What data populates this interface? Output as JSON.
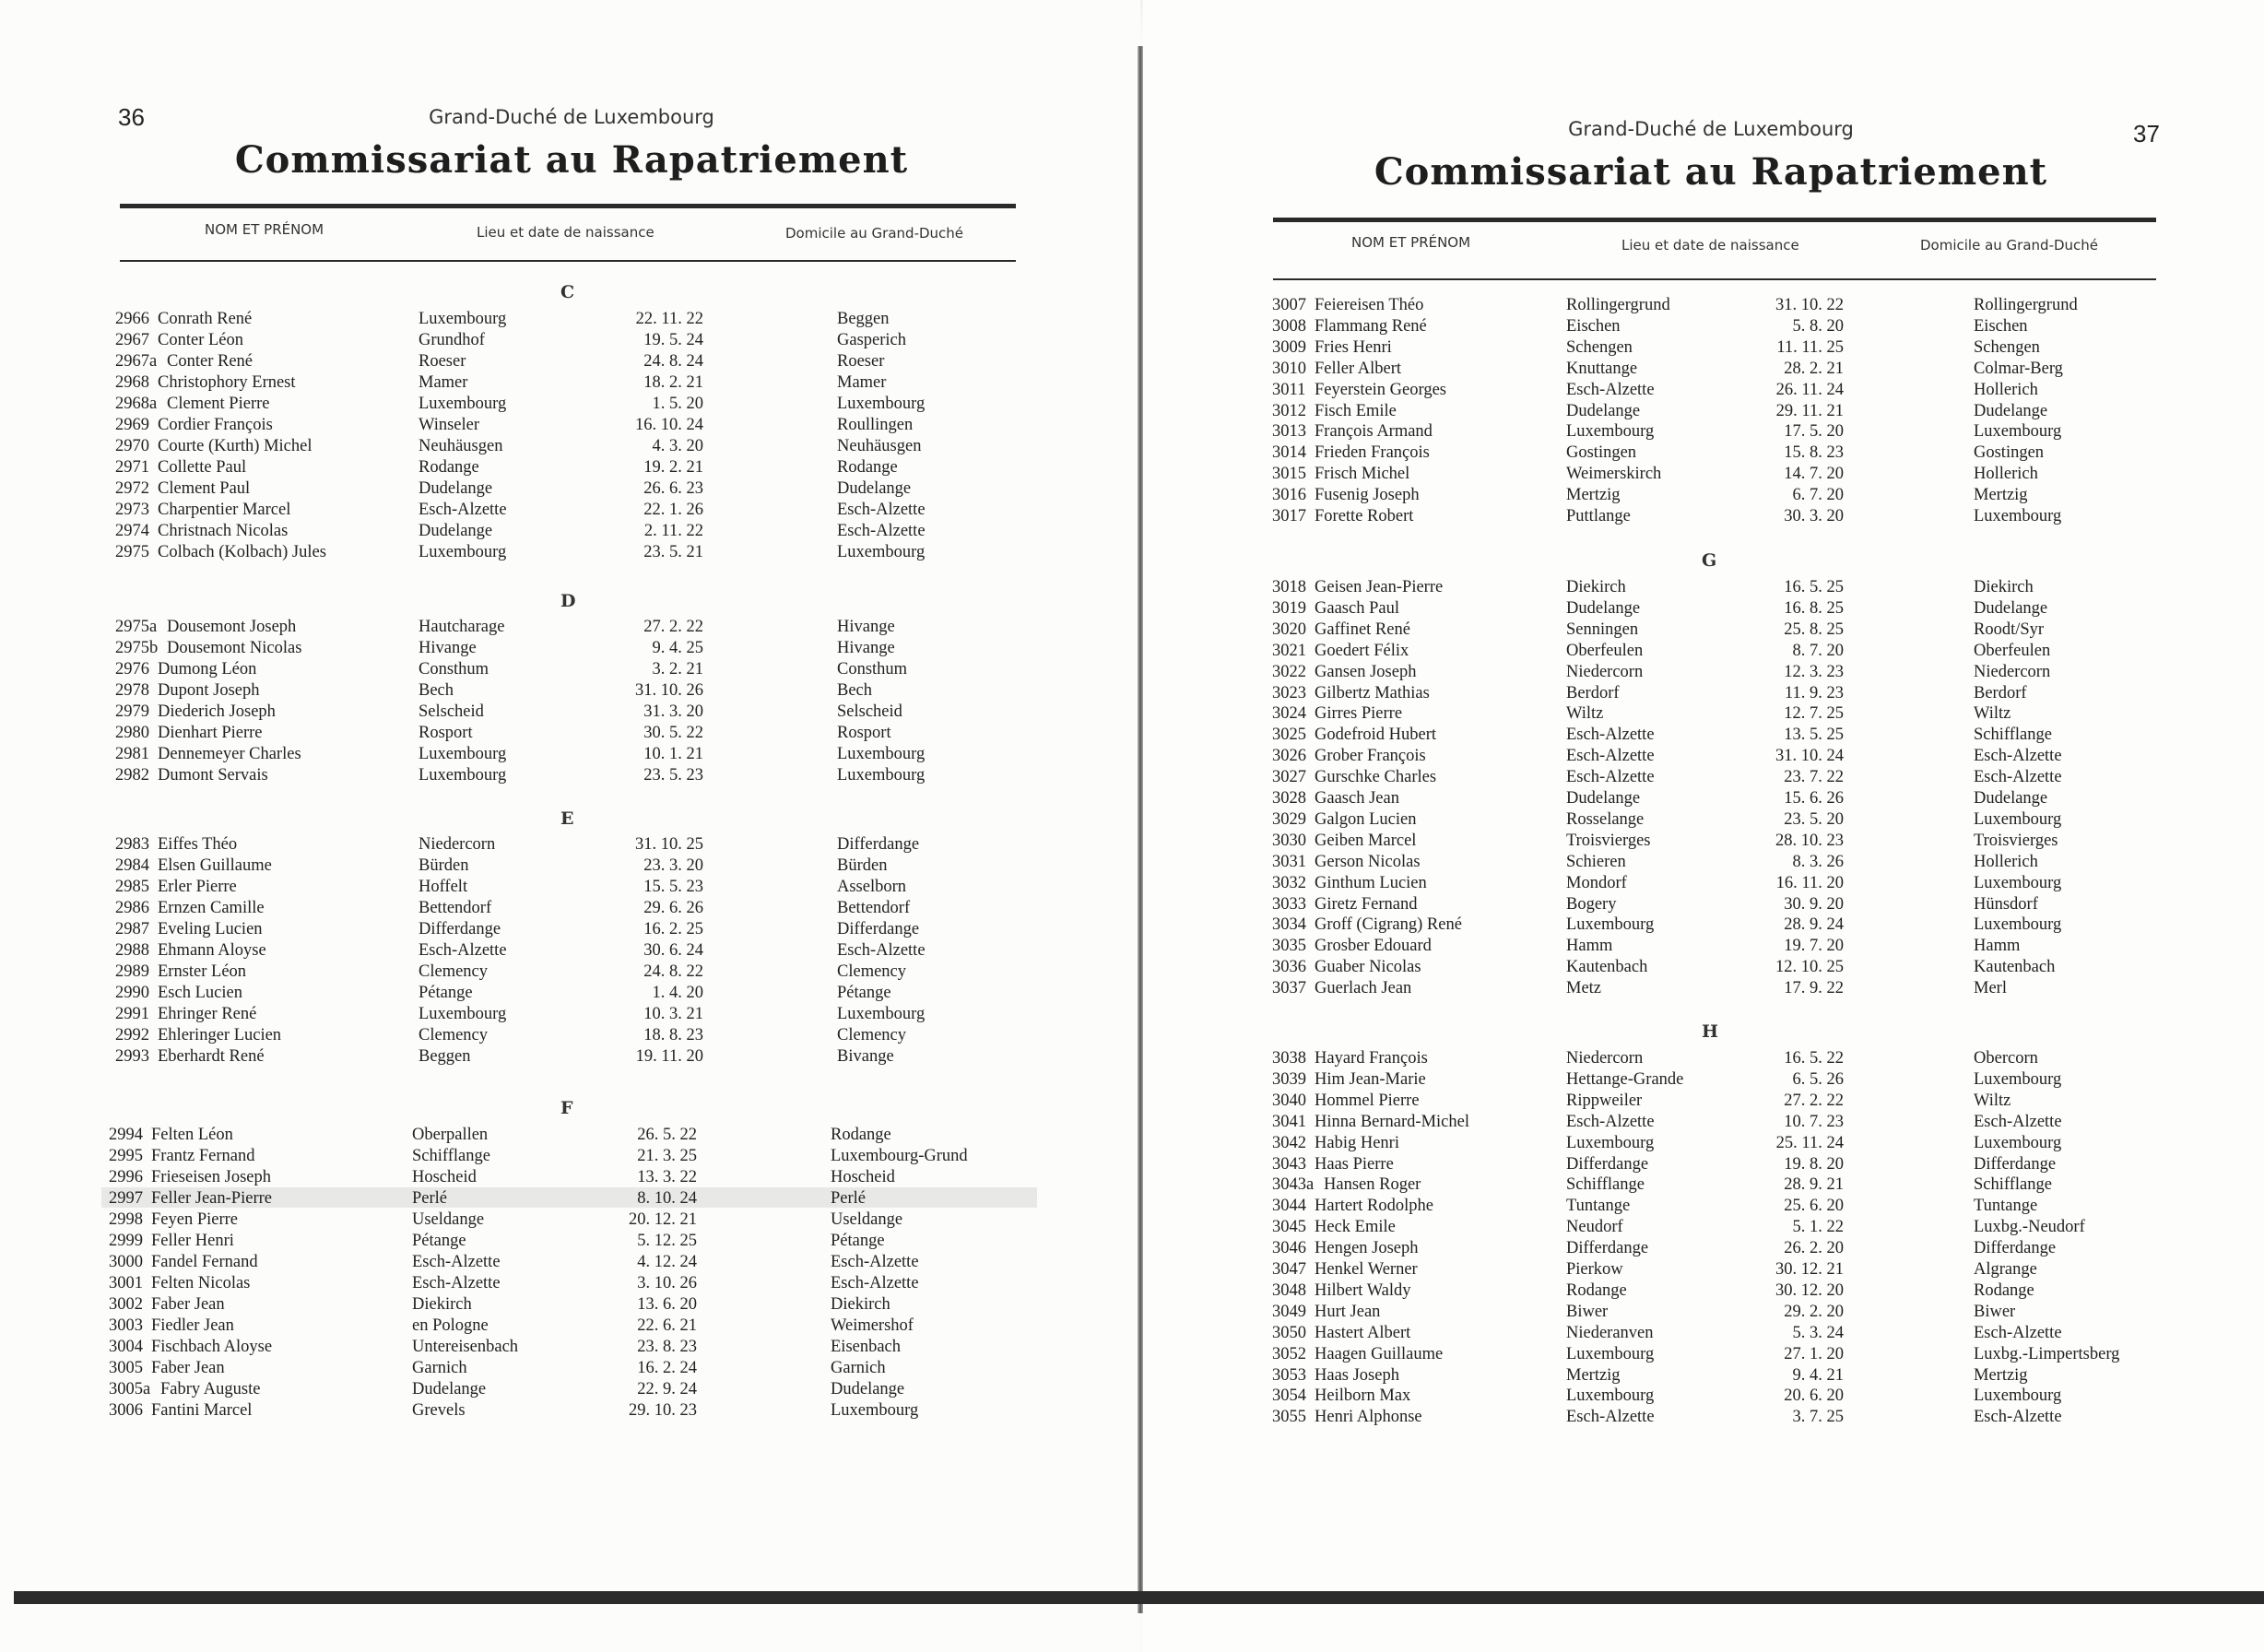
{
  "pages": [
    {
      "page_number": "36",
      "subtitle": "Grand-Duché de Luxembourg",
      "title": "Commissariat au Rapatriement",
      "headers": {
        "name": "NOM ET PRÉNOM",
        "birth": "Lieu et date de naissance",
        "domicile": "Domicile au Grand-Duché"
      },
      "sections": [
        {
          "letter": "C",
          "rows": [
            [
              "2966",
              "Conrath René",
              "Luxembourg",
              "22. 11. 22",
              "Beggen"
            ],
            [
              "2967",
              "Conter Léon",
              "Grundhof",
              "19.  5. 24",
              "Gasperich"
            ],
            [
              "2967a",
              "Conter René",
              "Roeser",
              "24.  8. 24",
              "Roeser"
            ],
            [
              "2968",
              "Christophory Ernest",
              "Mamer",
              "18.  2. 21",
              "Mamer"
            ],
            [
              "2968a",
              "Clement Pierre",
              "Luxembourg",
              "1.  5. 20",
              "Luxembourg"
            ],
            [
              "2969",
              "Cordier François",
              "Winseler",
              "16. 10. 24",
              "Roullingen"
            ],
            [
              "2970",
              "Courte (Kurth) Michel",
              "Neuhäusgen",
              "4.  3. 20",
              "Neuhäusgen"
            ],
            [
              "2971",
              "Collette Paul",
              "Rodange",
              "19.  2. 21",
              "Rodange"
            ],
            [
              "2972",
              "Clement Paul",
              "Dudelange",
              "26.  6. 23",
              "Dudelange"
            ],
            [
              "2973",
              "Charpentier Marcel",
              "Esch-Alzette",
              "22.  1. 26",
              "Esch-Alzette"
            ],
            [
              "2974",
              "Christnach Nicolas",
              "Dudelange",
              "2. 11. 22",
              "Esch-Alzette"
            ],
            [
              "2975",
              "Colbach (Kolbach) Jules",
              "Luxembourg",
              "23.  5. 21",
              "Luxembourg"
            ]
          ]
        },
        {
          "letter": "D",
          "rows": [
            [
              "2975a",
              "Dousemont Joseph",
              "Hautcharage",
              "27.  2. 22",
              "Hivange"
            ],
            [
              "2975b",
              "Dousemont Nicolas",
              "Hivange",
              "9.  4. 25",
              "Hivange"
            ],
            [
              "2976",
              "Dumong Léon",
              "Consthum",
              "3.  2. 21",
              "Consthum"
            ],
            [
              "2978",
              "Dupont Joseph",
              "Bech",
              "31. 10. 26",
              "Bech"
            ],
            [
              "2979",
              "Diederich Joseph",
              "Selscheid",
              "31.  3. 20",
              "Selscheid"
            ],
            [
              "2980",
              "Dienhart Pierre",
              "Rosport",
              "30.  5. 22",
              "Rosport"
            ],
            [
              "2981",
              "Dennemeyer Charles",
              "Luxembourg",
              "10.  1. 21",
              "Luxembourg"
            ],
            [
              "2982",
              "Dumont Servais",
              "Luxembourg",
              "23.  5. 23",
              "Luxembourg"
            ]
          ]
        },
        {
          "letter": "E",
          "rows": [
            [
              "2983",
              "Eiffes Théo",
              "Niedercorn",
              "31. 10. 25",
              "Differdange"
            ],
            [
              "2984",
              "Elsen Guillaume",
              "Bürden",
              "23.  3. 20",
              "Bürden"
            ],
            [
              "2985",
              "Erler Pierre",
              "Hoffelt",
              "15.  5. 23",
              "Asselborn"
            ],
            [
              "2986",
              "Ernzen Camille",
              "Bettendorf",
              "29.  6. 26",
              "Bettendorf"
            ],
            [
              "2987",
              "Eveling Lucien",
              "Differdange",
              "16.  2. 25",
              "Differdange"
            ],
            [
              "2988",
              "Ehmann Aloyse",
              "Esch-Alzette",
              "30.  6. 24",
              "Esch-Alzette"
            ],
            [
              "2989",
              "Ernster Léon",
              "Clemency",
              "24.  8. 22",
              "Clemency"
            ],
            [
              "2990",
              "Esch Lucien",
              "Pétange",
              "1.  4. 20",
              "Pétange"
            ],
            [
              "2991",
              "Ehringer René",
              "Luxembourg",
              "10.  3. 21",
              "Luxembourg"
            ],
            [
              "2992",
              "Ehleringer Lucien",
              "Clemency",
              "18.  8. 23",
              "Clemency"
            ],
            [
              "2993",
              "Eberhardt René",
              "Beggen",
              "19. 11. 20",
              "Bivange"
            ]
          ]
        },
        {
          "letter": "F",
          "rows": [
            [
              "2994",
              "Felten Léon",
              "Oberpallen",
              "26.  5. 22",
              "Rodange"
            ],
            [
              "2995",
              "Frantz Fernand",
              "Schifflange",
              "21.  3. 25",
              "Luxembourg-Grund"
            ],
            [
              "2996",
              "Frieseisen Joseph",
              "Hoscheid",
              "13.  3. 22",
              "Hoscheid"
            ],
            [
              "2997",
              "Feller Jean-Pierre",
              "Perlé",
              "8. 10. 24",
              "Perlé"
            ],
            [
              "2998",
              "Feyen Pierre",
              "Useldange",
              "20. 12. 21",
              "Useldange"
            ],
            [
              "2999",
              "Feller Henri",
              "Pétange",
              "5. 12. 25",
              "Pétange"
            ],
            [
              "3000",
              "Fandel Fernand",
              "Esch-Alzette",
              "4. 12. 24",
              "Esch-Alzette"
            ],
            [
              "3001",
              "Felten Nicolas",
              "Esch-Alzette",
              "3. 10. 26",
              "Esch-Alzette"
            ],
            [
              "3002",
              "Faber Jean",
              "Diekirch",
              "13.  6. 20",
              "Diekirch"
            ],
            [
              "3003",
              "Fiedler Jean",
              "en Pologne",
              "22.  6. 21",
              "Weimershof"
            ],
            [
              "3004",
              "Fischbach Aloyse",
              "Untereisenbach",
              "23.  8. 23",
              "Eisenbach"
            ],
            [
              "3005",
              "Faber Jean",
              "Garnich",
              "16.  2. 24",
              "Garnich"
            ],
            [
              "3005a",
              "Fabry Auguste",
              "Dudelange",
              "22.  9. 24",
              "Dudelange"
            ],
            [
              "3006",
              "Fantini Marcel",
              "Grevels",
              "29. 10. 23",
              "Luxembourg"
            ]
          ]
        }
      ]
    },
    {
      "page_number": "37",
      "subtitle": "Grand-Duché de Luxembourg",
      "title": "Commissariat au Rapatriement",
      "headers": {
        "name": "NOM ET PRÉNOM",
        "birth": "Lieu et date de naissance",
        "domicile": "Domicile au Grand-Duché"
      },
      "sections": [
        {
          "letter": "",
          "rows": [
            [
              "3007",
              "Feiereisen Théo",
              "Rollingergrund",
              "31. 10. 22",
              "Rollingergrund"
            ],
            [
              "3008",
              "Flammang René",
              "Eischen",
              "5.  8. 20",
              "Eischen"
            ],
            [
              "3009",
              "Fries Henri",
              "Schengen",
              "11. 11. 25",
              "Schengen"
            ],
            [
              "3010",
              "Feller Albert",
              "Knuttange",
              "28.  2. 21",
              "Colmar-Berg"
            ],
            [
              "3011",
              "Feyerstein Georges",
              "Esch-Alzette",
              "26. 11. 24",
              "Hollerich"
            ],
            [
              "3012",
              "Fisch Emile",
              "Dudelange",
              "29. 11. 21",
              "Dudelange"
            ],
            [
              "3013",
              "François Armand",
              "Luxembourg",
              "17.  5. 20",
              "Luxembourg"
            ],
            [
              "3014",
              "Frieden François",
              "Gostingen",
              "15.  8. 23",
              "Gostingen"
            ],
            [
              "3015",
              "Frisch Michel",
              "Weimerskirch",
              "14.  7. 20",
              "Hollerich"
            ],
            [
              "3016",
              "Fusenig Joseph",
              "Mertzig",
              "6.  7. 20",
              "Mertzig"
            ],
            [
              "3017",
              "Forette Robert",
              "Puttlange",
              "30.  3. 20",
              "Luxembourg"
            ]
          ]
        },
        {
          "letter": "G",
          "rows": [
            [
              "3018",
              "Geisen Jean-Pierre",
              "Diekirch",
              "16.  5. 25",
              "Diekirch"
            ],
            [
              "3019",
              "Gaasch Paul",
              "Dudelange",
              "16.  8. 25",
              "Dudelange"
            ],
            [
              "3020",
              "Gaffinet René",
              "Senningen",
              "25.  8. 25",
              "Roodt/Syr"
            ],
            [
              "3021",
              "Goedert Félix",
              "Oberfeulen",
              "8.  7. 20",
              "Oberfeulen"
            ],
            [
              "3022",
              "Gansen Joseph",
              "Niedercorn",
              "12.  3. 23",
              "Niedercorn"
            ],
            [
              "3023",
              "Gilbertz Mathias",
              "Berdorf",
              "11.  9. 23",
              "Berdorf"
            ],
            [
              "3024",
              "Girres Pierre",
              "Wiltz",
              "12.  7. 25",
              "Wiltz"
            ],
            [
              "3025",
              "Godefroid Hubert",
              "Esch-Alzette",
              "13.  5. 25",
              "Schifflange"
            ],
            [
              "3026",
              "Grober François",
              "Esch-Alzette",
              "31. 10. 24",
              "Esch-Alzette"
            ],
            [
              "3027",
              "Gurschke Charles",
              "Esch-Alzette",
              "23.  7. 22",
              "Esch-Alzette"
            ],
            [
              "3028",
              "Gaasch Jean",
              "Dudelange",
              "15.  6. 26",
              "Dudelange"
            ],
            [
              "3029",
              "Galgon Lucien",
              "Rosselange",
              "23.  5. 20",
              "Luxembourg"
            ],
            [
              "3030",
              "Geiben Marcel",
              "Troisvierges",
              "28. 10. 23",
              "Troisvierges"
            ],
            [
              "3031",
              "Gerson Nicolas",
              "Schieren",
              "8.  3. 26",
              "Hollerich"
            ],
            [
              "3032",
              "Ginthum Lucien",
              "Mondorf",
              "16. 11. 20",
              "Luxembourg"
            ],
            [
              "3033",
              "Giretz Fernand",
              "Bogery",
              "30.  9. 20",
              "Hünsdorf"
            ],
            [
              "3034",
              "Groff (Cigrang) René",
              "Luxembourg",
              "28.  9. 24",
              "Luxembourg"
            ],
            [
              "3035",
              "Grosber Edouard",
              "Hamm",
              "19.  7. 20",
              "Hamm"
            ],
            [
              "3036",
              "Guaber Nicolas",
              "Kautenbach",
              "12. 10. 25",
              "Kautenbach"
            ],
            [
              "3037",
              "Guerlach Jean",
              "Metz",
              "17.  9. 22",
              "Merl"
            ]
          ]
        },
        {
          "letter": "H",
          "rows": [
            [
              "3038",
              "Hayard François",
              "Niedercorn",
              "16.  5. 22",
              "Obercorn"
            ],
            [
              "3039",
              "Him Jean-Marie",
              "Hettange-Grande",
              "6.  5. 26",
              "Luxembourg"
            ],
            [
              "3040",
              "Hommel Pierre",
              "Rippweiler",
              "27.  2. 22",
              "Wiltz"
            ],
            [
              "3041",
              "Hinna Bernard-Michel",
              "Esch-Alzette",
              "10.  7. 23",
              "Esch-Alzette"
            ],
            [
              "3042",
              "Habig Henri",
              "Luxembourg",
              "25. 11. 24",
              "Luxembourg"
            ],
            [
              "3043",
              "Haas Pierre",
              "Differdange",
              "19.  8. 20",
              "Differdange"
            ],
            [
              "3043a",
              "Hansen Roger",
              "Schifflange",
              "28.  9. 21",
              "Schifflange"
            ],
            [
              "3044",
              "Hartert Rodolphe",
              "Tuntange",
              "25.  6. 20",
              "Tuntange"
            ],
            [
              "3045",
              "Heck Emile",
              "Neudorf",
              "5.  1. 22",
              "Luxbg.-Neudorf"
            ],
            [
              "3046",
              "Hengen Joseph",
              "Differdange",
              "26.  2. 20",
              "Differdange"
            ],
            [
              "3047",
              "Henkel Werner",
              "Pierkow",
              "30. 12. 21",
              "Algrange"
            ],
            [
              "3048",
              "Hilbert Waldy",
              "Rodange",
              "30. 12. 20",
              "Rodange"
            ],
            [
              "3049",
              "Hurt Jean",
              "Biwer",
              "29.  2. 20",
              "Biwer"
            ],
            [
              "3050",
              "Hastert Albert",
              "Niederanven",
              "5.  3. 24",
              "Esch-Alzette"
            ],
            [
              "3052",
              "Haagen Guillaume",
              "Luxembourg",
              "27.  1. 20",
              "Luxbg.-Limpertsberg"
            ],
            [
              "3053",
              "Haas Joseph",
              "Mertzig",
              "9.  4. 21",
              "Mertzig"
            ],
            [
              "3054",
              "Heilborn Max",
              "Luxembourg",
              "20.  6. 20",
              "Luxembourg"
            ],
            [
              "3055",
              "Henri Alphonse",
              "Esch-Alzette",
              "3.  7. 25",
              "Esch-Alzette"
            ]
          ]
        }
      ]
    }
  ]
}
